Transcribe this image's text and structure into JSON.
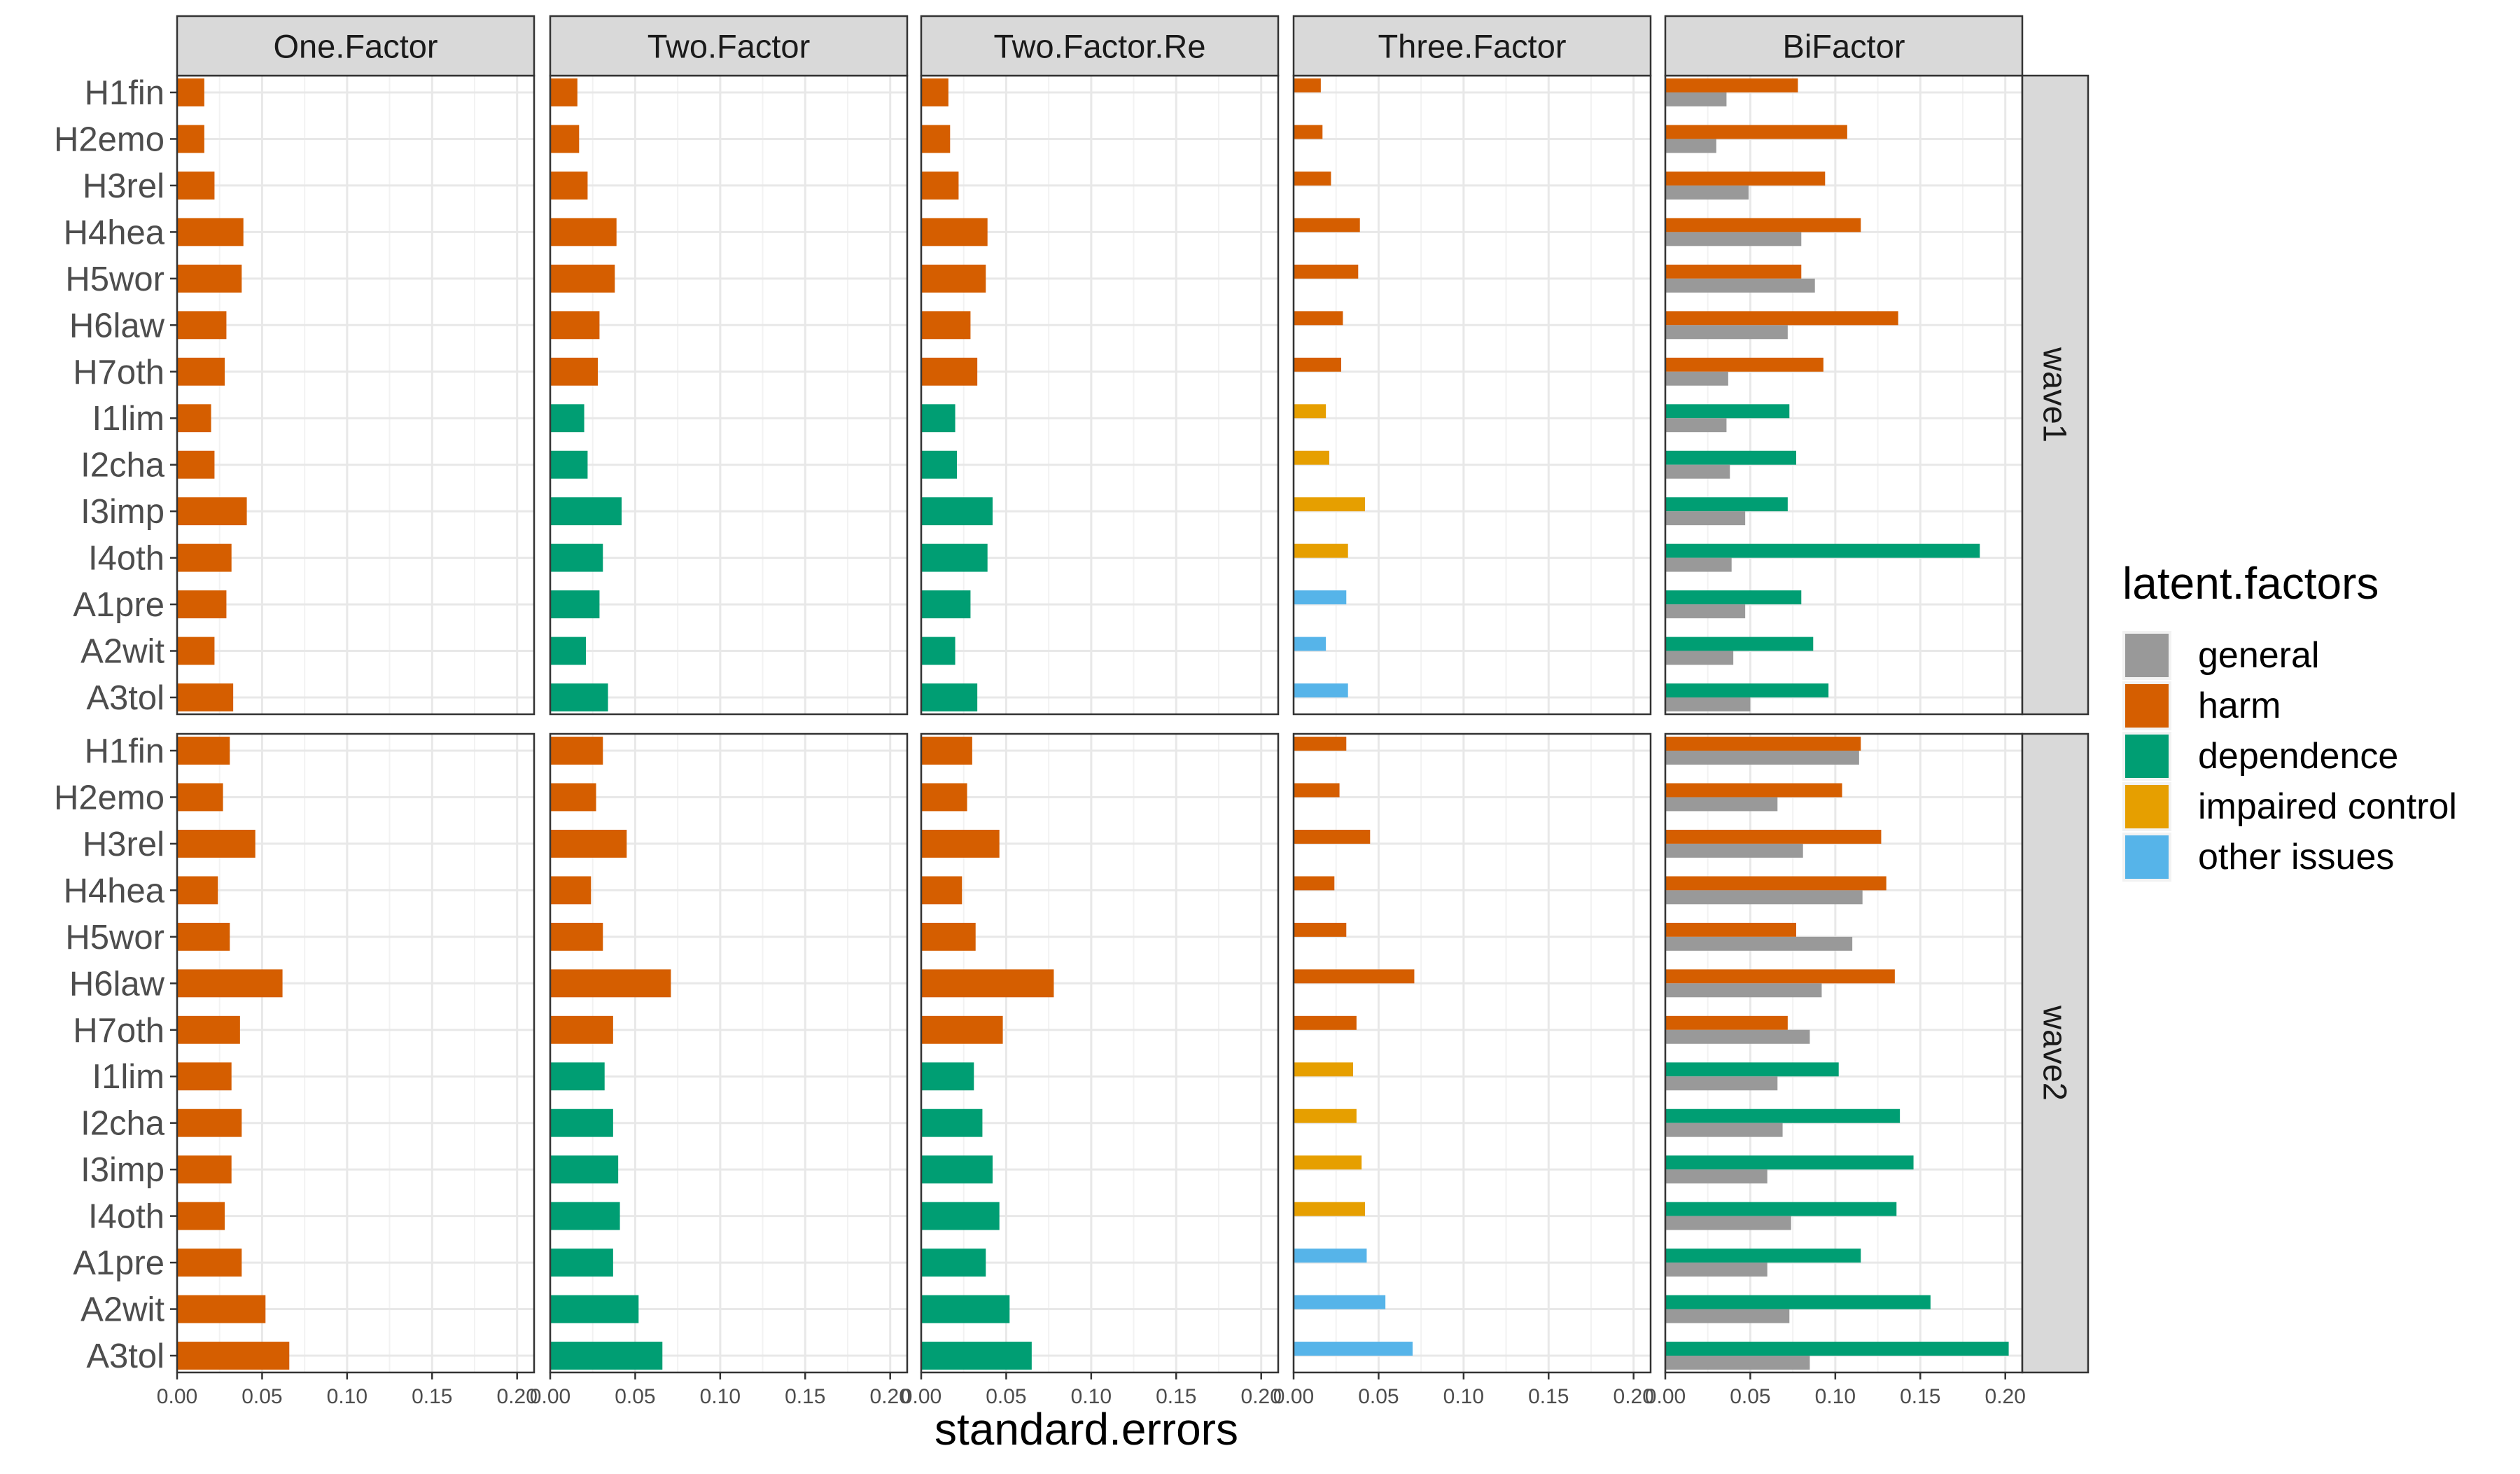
{
  "chart_data": {
    "type": "bar",
    "orientation": "horizontal",
    "facet_columns": [
      "One.Factor",
      "Two.Factor",
      "Two.Factor.Re",
      "Three.Factor",
      "BiFactor"
    ],
    "facet_rows": [
      "wave1",
      "wave2"
    ],
    "categories": [
      "H1fin",
      "H2emo",
      "H3rel",
      "H4hea",
      "H5wor",
      "H6law",
      "H7oth",
      "I1lim",
      "I2cha",
      "I3imp",
      "I4oth",
      "A1pre",
      "A2wit",
      "A3tol"
    ],
    "xlabel": "standard.errors",
    "xlim": [
      0,
      0.21
    ],
    "xticks": [
      "0.00",
      "0.05",
      "0.10",
      "0.15",
      "0.20"
    ],
    "grid": true,
    "legend": {
      "title": "latent.factors",
      "position": "right",
      "entries": [
        {
          "name": "general",
          "color": "#999999"
        },
        {
          "name": "harm",
          "color": "#D55E00"
        },
        {
          "name": "dependence",
          "color": "#009E73"
        },
        {
          "name": "impaired control",
          "color": "#E69F00"
        },
        {
          "name": "other issues",
          "color": "#56B4E9"
        }
      ]
    },
    "panels": [
      {
        "model": "One.Factor",
        "wave": "wave1",
        "series": [
          {
            "name": "harm",
            "values": [
              0.016,
              0.016,
              0.022,
              0.039,
              0.038,
              0.029,
              0.028,
              0.02,
              0.022,
              0.041,
              0.032,
              0.029,
              0.022,
              0.033
            ]
          }
        ]
      },
      {
        "model": "Two.Factor",
        "wave": "wave1",
        "series": [
          {
            "name": "harm",
            "values": [
              0.016,
              0.017,
              0.022,
              0.039,
              0.038,
              0.029,
              0.028,
              null,
              null,
              null,
              null,
              null,
              null,
              null
            ]
          },
          {
            "name": "dependence",
            "values": [
              null,
              null,
              null,
              null,
              null,
              null,
              null,
              0.02,
              0.022,
              0.042,
              0.031,
              0.029,
              0.021,
              0.034
            ]
          }
        ]
      },
      {
        "model": "Two.Factor.Re",
        "wave": "wave1",
        "series": [
          {
            "name": "harm",
            "values": [
              0.016,
              0.017,
              0.022,
              0.039,
              0.038,
              0.029,
              0.033,
              null,
              null,
              null,
              null,
              null,
              null,
              null
            ]
          },
          {
            "name": "dependence",
            "values": [
              null,
              null,
              null,
              null,
              null,
              null,
              null,
              0.02,
              0.021,
              0.042,
              0.039,
              0.029,
              0.02,
              0.033
            ]
          }
        ]
      },
      {
        "model": "Three.Factor",
        "wave": "wave1",
        "series": [
          {
            "name": "harm",
            "values": [
              0.016,
              0.017,
              0.022,
              0.039,
              0.038,
              0.029,
              0.028,
              null,
              null,
              null,
              null,
              null,
              null,
              null
            ]
          },
          {
            "name": "impaired control",
            "values": [
              null,
              null,
              null,
              null,
              null,
              null,
              null,
              0.019,
              0.021,
              0.042,
              0.032,
              null,
              null,
              null
            ]
          },
          {
            "name": "other issues",
            "values": [
              null,
              null,
              null,
              null,
              null,
              null,
              null,
              null,
              null,
              null,
              null,
              0.031,
              0.019,
              0.032
            ]
          }
        ]
      },
      {
        "model": "BiFactor",
        "wave": "wave1",
        "series": [
          {
            "name": "harm",
            "values": [
              0.078,
              0.107,
              0.094,
              0.115,
              0.08,
              0.137,
              0.093,
              null,
              null,
              null,
              null,
              null,
              null,
              null
            ]
          },
          {
            "name": "dependence",
            "values": [
              null,
              null,
              null,
              null,
              null,
              null,
              null,
              0.073,
              0.077,
              0.072,
              0.185,
              0.08,
              0.087,
              0.096
            ]
          },
          {
            "name": "general",
            "values": [
              0.036,
              0.03,
              0.049,
              0.08,
              0.088,
              0.072,
              0.037,
              0.036,
              0.038,
              0.047,
              0.039,
              0.047,
              0.04,
              0.05
            ]
          }
        ]
      },
      {
        "model": "One.Factor",
        "wave": "wave2",
        "series": [
          {
            "name": "harm",
            "values": [
              0.031,
              0.027,
              0.046,
              0.024,
              0.031,
              0.062,
              0.037,
              0.032,
              0.038,
              0.032,
              0.028,
              0.038,
              0.052,
              0.066
            ]
          }
        ]
      },
      {
        "model": "Two.Factor",
        "wave": "wave2",
        "series": [
          {
            "name": "harm",
            "values": [
              0.031,
              0.027,
              0.045,
              0.024,
              0.031,
              0.071,
              0.037,
              null,
              null,
              null,
              null,
              null,
              null,
              null
            ]
          },
          {
            "name": "dependence",
            "values": [
              null,
              null,
              null,
              null,
              null,
              null,
              null,
              0.032,
              0.037,
              0.04,
              0.041,
              0.037,
              0.052,
              0.066
            ]
          }
        ]
      },
      {
        "model": "Two.Factor.Re",
        "wave": "wave2",
        "series": [
          {
            "name": "harm",
            "values": [
              0.03,
              0.027,
              0.046,
              0.024,
              0.032,
              0.078,
              0.048,
              null,
              null,
              null,
              null,
              null,
              null,
              null
            ]
          },
          {
            "name": "dependence",
            "values": [
              null,
              null,
              null,
              null,
              null,
              null,
              null,
              0.031,
              0.036,
              0.042,
              0.046,
              0.038,
              0.052,
              0.065
            ]
          }
        ]
      },
      {
        "model": "Three.Factor",
        "wave": "wave2",
        "series": [
          {
            "name": "harm",
            "values": [
              0.031,
              0.027,
              0.045,
              0.024,
              0.031,
              0.071,
              0.037,
              null,
              null,
              null,
              null,
              null,
              null,
              null
            ]
          },
          {
            "name": "impaired control",
            "values": [
              null,
              null,
              null,
              null,
              null,
              null,
              null,
              0.035,
              0.037,
              0.04,
              0.042,
              null,
              null,
              null
            ]
          },
          {
            "name": "other issues",
            "values": [
              null,
              null,
              null,
              null,
              null,
              null,
              null,
              null,
              null,
              null,
              null,
              0.043,
              0.054,
              0.07
            ]
          }
        ]
      },
      {
        "model": "BiFactor",
        "wave": "wave2",
        "series": [
          {
            "name": "harm",
            "values": [
              0.115,
              0.104,
              0.127,
              0.13,
              0.077,
              0.135,
              0.072,
              null,
              null,
              null,
              null,
              null,
              null,
              null
            ]
          },
          {
            "name": "dependence",
            "values": [
              null,
              null,
              null,
              null,
              null,
              null,
              null,
              0.102,
              0.138,
              0.146,
              0.136,
              0.115,
              0.156,
              0.202
            ]
          },
          {
            "name": "general",
            "values": [
              0.114,
              0.066,
              0.081,
              0.116,
              0.11,
              0.092,
              0.085,
              0.066,
              0.069,
              0.06,
              0.074,
              0.06,
              0.073,
              0.085
            ]
          }
        ]
      }
    ]
  }
}
